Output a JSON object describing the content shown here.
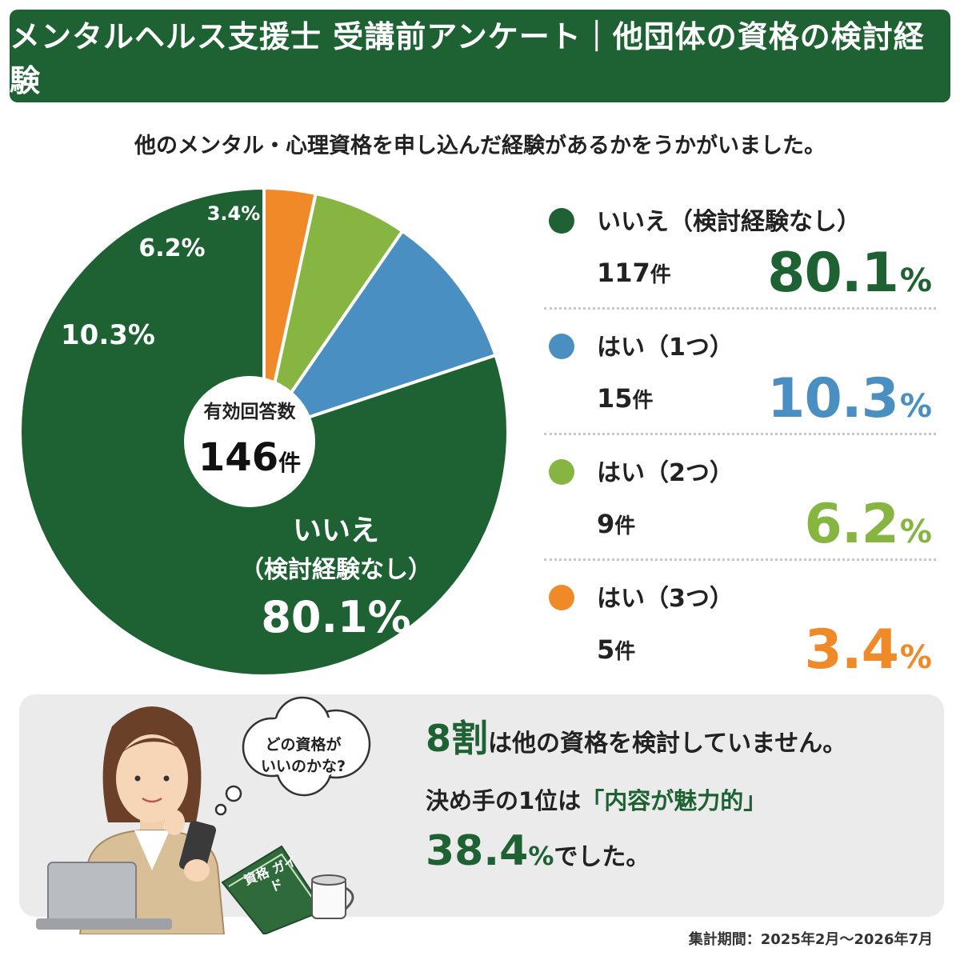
{
  "header": {
    "title": "メンタルヘルス支援士 受講前アンケート｜他団体の資格の検討経験"
  },
  "question": "他のメンタル・心理資格を申し込んだ経験があるかをうかがいました。",
  "chart_data": {
    "type": "pie",
    "center": {
      "label": "有効回答数",
      "value": "146",
      "unit": "件"
    },
    "slices": [
      {
        "name": "いいえ（検討経験なし）",
        "count": 117,
        "value": 80.1,
        "pct_label": "80.1",
        "color": "#1e6234"
      },
      {
        "name": "はい（1つ）",
        "count": 15,
        "value": 10.3,
        "pct_label": "10.3",
        "color": "#4a8fc1"
      },
      {
        "name": "はい（2つ）",
        "count": 9,
        "value": 6.2,
        "pct_label": "6.2",
        "color": "#86b542"
      },
      {
        "name": "はい（3つ）",
        "count": 5,
        "value": 3.4,
        "pct_label": "3.4",
        "color": "#f08a28"
      }
    ],
    "inside_label": {
      "line1": "いいえ",
      "line2": "（検討経験なし）"
    },
    "count_unit": "件",
    "pct_unit": "%"
  },
  "illustration": {
    "thought": "どの資格が いいのかな?",
    "book": "資格 ガイド"
  },
  "summary": {
    "line1_big": "8割",
    "line1_rest": "は他の資格を検討していません。",
    "line2_pre": "決め手の1位は",
    "line2_hl": "「内容が魅力的」",
    "line3_big": "38.4",
    "line3_unit": "%",
    "line3_rest": "でした。"
  },
  "footnote": "集計期間：2025年2月～2026年7月"
}
